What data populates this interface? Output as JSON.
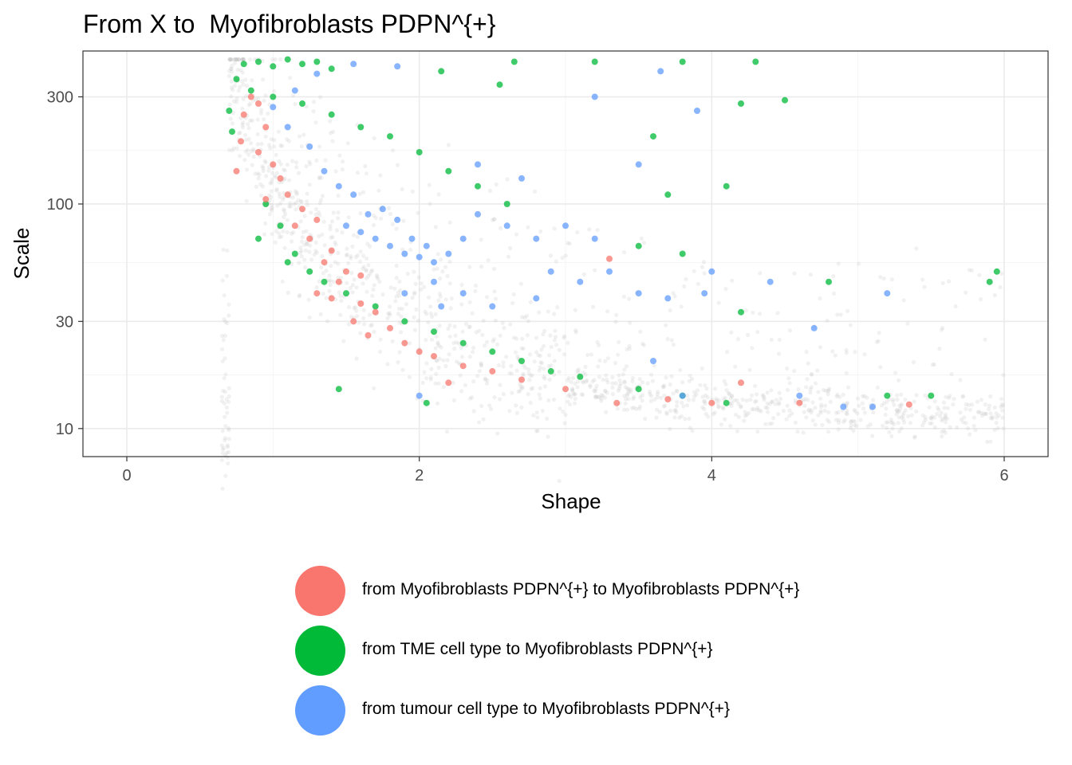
{
  "colors": {
    "background_points": "#bdbdbd",
    "myofibroblast": "#F8766D",
    "tme": "#00BA38",
    "tumour": "#619CFF",
    "grid_major": "#ebebeb",
    "grid_minor": "#f5f5f5",
    "panel_border": "#333333"
  },
  "chart_data": {
    "type": "scatter",
    "title": "From X to  Myofibroblasts PDPN^{+}",
    "xlabel": "Shape",
    "ylabel": "Scale",
    "xlim": [
      -0.3,
      6.3
    ],
    "ylim": [
      7.5,
      480
    ],
    "y_scale": "log10",
    "x_ticks": [
      0,
      2,
      4,
      6
    ],
    "x_tick_labels": [
      "0",
      "2",
      "4",
      "6"
    ],
    "y_ticks": [
      10,
      30,
      100,
      300
    ],
    "y_tick_labels": [
      "10",
      "30",
      "100",
      "300"
    ],
    "grid": true,
    "legend_position": "bottom",
    "background_cloud": {
      "description_points": [
        [
          0.7,
          330
        ],
        [
          0.8,
          250
        ],
        [
          0.9,
          180
        ],
        [
          1.0,
          130
        ],
        [
          1.1,
          95
        ],
        [
          1.2,
          75
        ],
        [
          1.4,
          55
        ],
        [
          1.6,
          42
        ],
        [
          1.8,
          34
        ],
        [
          2.0,
          28
        ],
        [
          2.3,
          22
        ],
        [
          2.6,
          18
        ],
        [
          3.0,
          16
        ],
        [
          3.5,
          14
        ],
        [
          4.0,
          13
        ],
        [
          4.5,
          12.5
        ],
        [
          5.0,
          12
        ],
        [
          5.5,
          11.5
        ],
        [
          6.0,
          11
        ]
      ]
    },
    "series": [
      {
        "name": "from Myofibroblasts PDPN^{+} to Myofibroblasts PDPN^{+}",
        "color": "#F8766D",
        "points": [
          [
            0.85,
            300
          ],
          [
            0.9,
            280
          ],
          [
            0.8,
            250
          ],
          [
            0.95,
            220
          ],
          [
            0.78,
            190
          ],
          [
            0.9,
            170
          ],
          [
            1.0,
            150
          ],
          [
            0.75,
            140
          ],
          [
            1.05,
            130
          ],
          [
            1.1,
            110
          ],
          [
            1.2,
            95
          ],
          [
            1.3,
            85
          ],
          [
            1.15,
            80
          ],
          [
            1.25,
            70
          ],
          [
            1.4,
            62
          ],
          [
            1.35,
            55
          ],
          [
            1.5,
            50
          ],
          [
            1.45,
            45
          ],
          [
            1.3,
            40
          ],
          [
            1.4,
            38
          ],
          [
            1.6,
            36
          ],
          [
            1.7,
            33
          ],
          [
            1.55,
            30
          ],
          [
            1.8,
            28
          ],
          [
            1.65,
            26
          ],
          [
            1.9,
            24
          ],
          [
            2.0,
            22
          ],
          [
            2.1,
            21
          ],
          [
            2.3,
            19
          ],
          [
            2.5,
            18
          ],
          [
            2.7,
            16.5
          ],
          [
            3.0,
            15
          ],
          [
            3.3,
            57
          ],
          [
            3.35,
            13
          ],
          [
            3.7,
            13.5
          ],
          [
            4.0,
            13
          ],
          [
            4.2,
            16
          ],
          [
            4.6,
            13
          ],
          [
            5.35,
            12.8
          ],
          [
            2.2,
            16
          ],
          [
            0.95,
            105
          ],
          [
            1.6,
            48
          ]
        ]
      },
      {
        "name": "from TME cell type to Myofibroblasts PDPN^{+}",
        "color": "#00BA38",
        "points": [
          [
            0.8,
            420
          ],
          [
            0.9,
            430
          ],
          [
            1.0,
            410
          ],
          [
            1.1,
            440
          ],
          [
            1.2,
            420
          ],
          [
            1.3,
            430
          ],
          [
            1.4,
            400
          ],
          [
            0.75,
            360
          ],
          [
            0.85,
            320
          ],
          [
            1.0,
            300
          ],
          [
            1.2,
            280
          ],
          [
            1.4,
            250
          ],
          [
            1.6,
            220
          ],
          [
            1.8,
            200
          ],
          [
            2.0,
            170
          ],
          [
            2.2,
            140
          ],
          [
            2.4,
            120
          ],
          [
            2.6,
            100
          ],
          [
            0.95,
            100
          ],
          [
            1.05,
            80
          ],
          [
            1.15,
            60
          ],
          [
            1.25,
            50
          ],
          [
            1.35,
            45
          ],
          [
            1.5,
            40
          ],
          [
            1.7,
            35
          ],
          [
            1.9,
            30
          ],
          [
            2.1,
            27
          ],
          [
            2.3,
            24
          ],
          [
            2.5,
            22
          ],
          [
            2.7,
            20
          ],
          [
            2.9,
            18
          ],
          [
            3.1,
            17
          ],
          [
            3.5,
            15
          ],
          [
            3.8,
            14
          ],
          [
            4.1,
            13
          ],
          [
            1.45,
            15
          ],
          [
            2.05,
            13
          ],
          [
            2.65,
            430
          ],
          [
            3.2,
            430
          ],
          [
            3.8,
            430
          ],
          [
            4.3,
            430
          ],
          [
            4.5,
            290
          ],
          [
            4.2,
            280
          ],
          [
            3.6,
            200
          ],
          [
            4.1,
            120
          ],
          [
            3.7,
            110
          ],
          [
            3.8,
            60
          ],
          [
            3.5,
            65
          ],
          [
            4.8,
            45
          ],
          [
            5.9,
            45
          ],
          [
            5.95,
            50
          ],
          [
            5.2,
            14
          ],
          [
            5.5,
            14
          ],
          [
            4.2,
            33
          ],
          [
            2.55,
            340
          ],
          [
            2.15,
            390
          ],
          [
            0.7,
            260
          ],
          [
            0.72,
            210
          ],
          [
            0.9,
            70
          ],
          [
            1.1,
            55
          ]
        ]
      },
      {
        "name": "from tumour cell type to Myofibroblasts PDPN^{+}",
        "color": "#619CFF",
        "points": [
          [
            1.5,
            80
          ],
          [
            1.6,
            75
          ],
          [
            1.7,
            70
          ],
          [
            1.8,
            65
          ],
          [
            1.9,
            60
          ],
          [
            2.0,
            58
          ],
          [
            2.1,
            55
          ],
          [
            2.2,
            60
          ],
          [
            2.3,
            70
          ],
          [
            1.65,
            90
          ],
          [
            1.75,
            95
          ],
          [
            1.85,
            85
          ],
          [
            1.95,
            70
          ],
          [
            2.05,
            65
          ],
          [
            1.55,
            110
          ],
          [
            1.45,
            120
          ],
          [
            1.35,
            140
          ],
          [
            1.25,
            180
          ],
          [
            1.1,
            220
          ],
          [
            1.0,
            270
          ],
          [
            1.15,
            320
          ],
          [
            1.3,
            380
          ],
          [
            1.55,
            420
          ],
          [
            1.85,
            410
          ],
          [
            2.4,
            90
          ],
          [
            2.6,
            80
          ],
          [
            2.8,
            70
          ],
          [
            3.0,
            80
          ],
          [
            2.9,
            50
          ],
          [
            3.1,
            45
          ],
          [
            3.3,
            50
          ],
          [
            3.5,
            40
          ],
          [
            3.7,
            38
          ],
          [
            3.2,
            300
          ],
          [
            3.5,
            150
          ],
          [
            3.9,
            260
          ],
          [
            3.65,
            390
          ],
          [
            4.0,
            50
          ],
          [
            4.4,
            45
          ],
          [
            5.2,
            40
          ],
          [
            4.7,
            28
          ],
          [
            3.95,
            40
          ],
          [
            2.4,
            150
          ],
          [
            2.7,
            130
          ],
          [
            2.1,
            45
          ],
          [
            2.15,
            35
          ],
          [
            1.9,
            40
          ],
          [
            2.3,
            40
          ],
          [
            2.5,
            35
          ],
          [
            2.0,
            14
          ],
          [
            4.6,
            14
          ],
          [
            4.9,
            12.5
          ],
          [
            5.1,
            12.5
          ],
          [
            3.8,
            14
          ],
          [
            2.8,
            38
          ],
          [
            3.6,
            20
          ],
          [
            3.2,
            70
          ]
        ]
      }
    ]
  },
  "legend": {
    "items": [
      {
        "label": "from Myofibroblasts PDPN^{+} to Myofibroblasts PDPN^{+}",
        "color": "#F8766D"
      },
      {
        "label": "from TME cell type to Myofibroblasts PDPN^{+}",
        "color": "#00BA38"
      },
      {
        "label": "from tumour cell type to Myofibroblasts PDPN^{+}",
        "color": "#619CFF"
      }
    ]
  }
}
